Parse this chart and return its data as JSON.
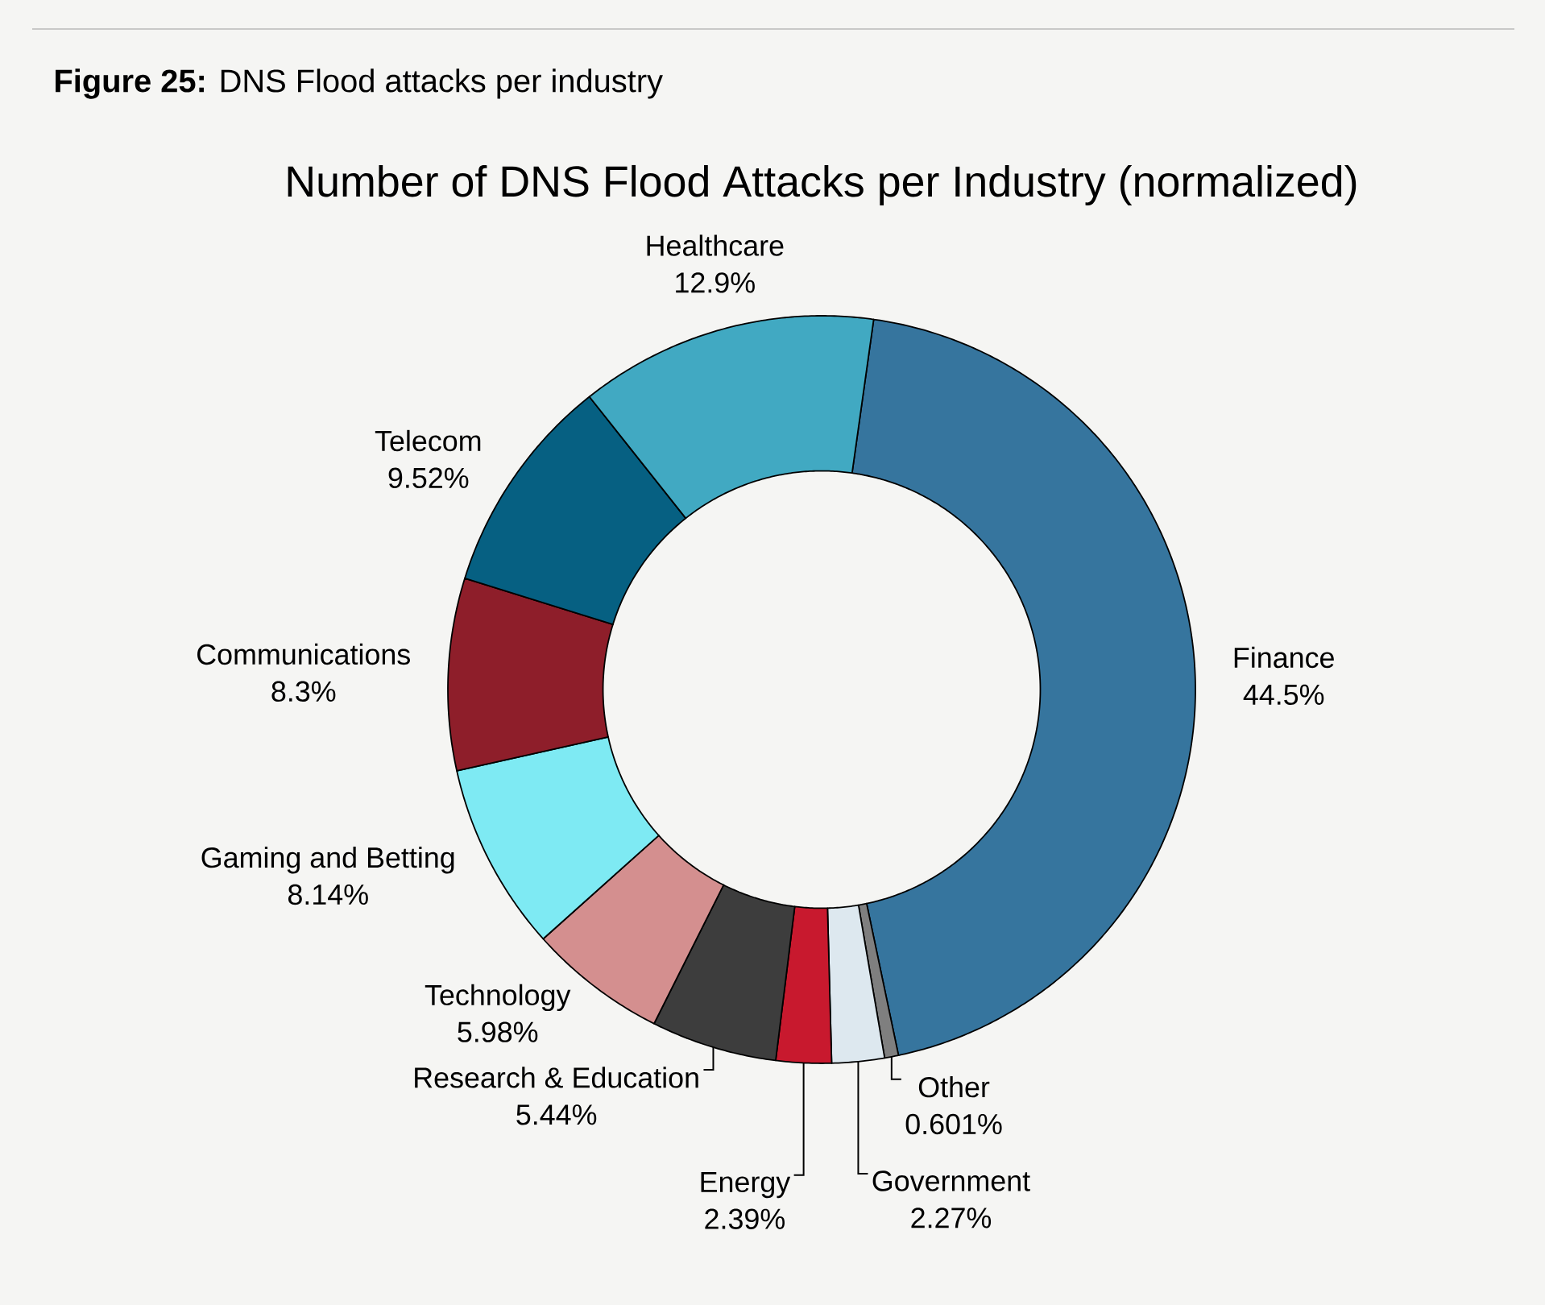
{
  "chart_data": {
    "type": "donut",
    "title": "Number of DNS Flood Attacks per Industry (normalized)",
    "annotations": [
      "**Figure 25:** DNS Flood attacks per industry"
    ],
    "categories": [
      "Finance",
      "Other",
      "Government",
      "Energy",
      "Research & Education",
      "Technology",
      "Gaming and Betting",
      "Communications",
      "Telecom",
      "Healthcare"
    ],
    "values": [
      44.5,
      0.601,
      2.27,
      2.39,
      5.44,
      5.98,
      8.14,
      8.3,
      9.52,
      12.9
    ],
    "colors": [
      "#36759e",
      "#7f7f7f",
      "#dde8ef",
      "#c8192e",
      "#3d3d3d",
      "#d48f8f",
      "#7eeaf3",
      "#8e1e2a",
      "#066082",
      "#41a9c2"
    ],
    "value_labels": [
      "44.5%",
      "0.601%",
      "2.27%",
      "2.39%",
      "5.44%",
      "5.98%",
      "8.14%",
      "8.3%",
      "9.52%",
      "12.9%"
    ]
  }
}
